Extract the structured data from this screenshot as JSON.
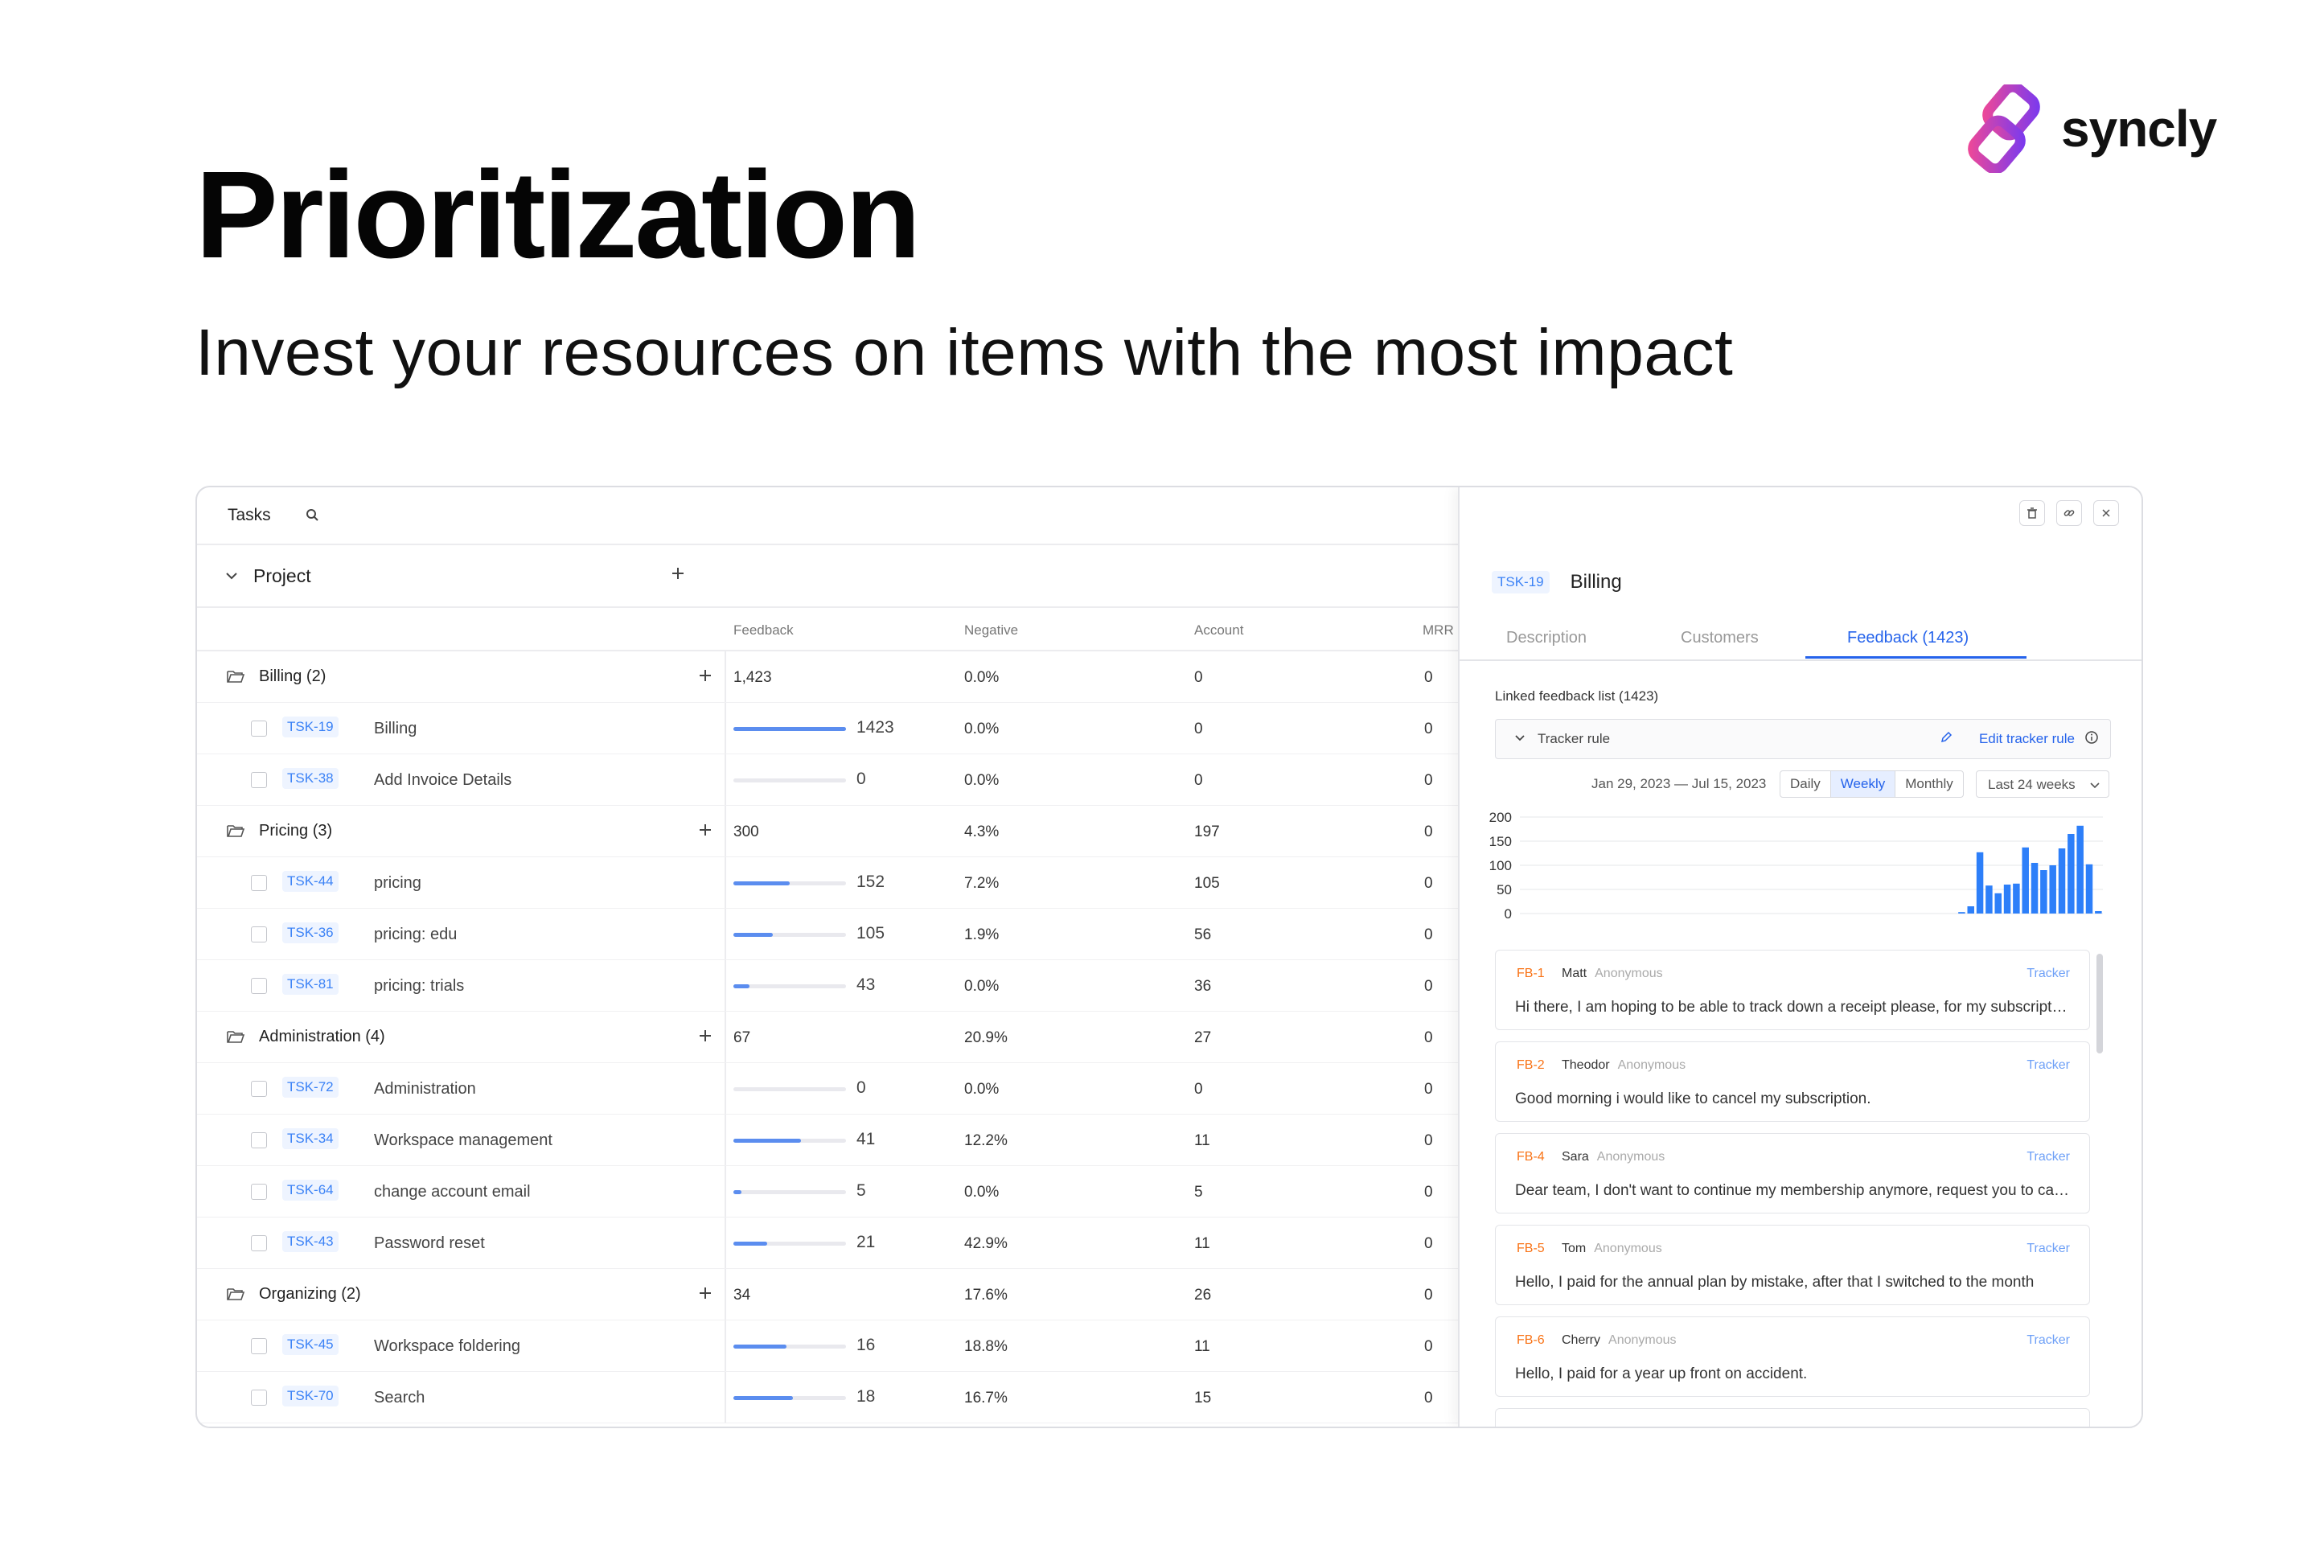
{
  "headline": "Prioritization",
  "subheadline": "Invest your resources on items with the most impact",
  "brand": {
    "name": "syncly",
    "colors": [
      "#7c3aed",
      "#ec4899"
    ]
  },
  "tasks_panel": {
    "title": "Tasks",
    "project_label": "Project",
    "columns": [
      "Feedback",
      "Negative",
      "Account",
      "MRR"
    ],
    "rows": [
      {
        "type": "group",
        "name": "Billing (2)",
        "feedback": "1,423",
        "negative": "0.0%",
        "account": "0",
        "mrr": "0"
      },
      {
        "type": "task",
        "id": "TSK-19",
        "name": "Billing",
        "bar": 1.0,
        "feedback": "1423",
        "negative": "0.0%",
        "account": "0",
        "mrr": "0"
      },
      {
        "type": "task",
        "id": "TSK-38",
        "name": "Add Invoice Details",
        "bar": 0.0,
        "feedback": "0",
        "negative": "0.0%",
        "account": "0",
        "mrr": "0"
      },
      {
        "type": "group",
        "name": "Pricing (3)",
        "feedback": "300",
        "negative": "4.3%",
        "account": "197",
        "mrr": "0"
      },
      {
        "type": "task",
        "id": "TSK-44",
        "name": "pricing",
        "bar": 0.5,
        "feedback": "152",
        "negative": "7.2%",
        "account": "105",
        "mrr": "0"
      },
      {
        "type": "task",
        "id": "TSK-36",
        "name": "pricing: edu",
        "bar": 0.35,
        "feedback": "105",
        "negative": "1.9%",
        "account": "56",
        "mrr": "0"
      },
      {
        "type": "task",
        "id": "TSK-81",
        "name": "pricing: trials",
        "bar": 0.14,
        "feedback": "43",
        "negative": "0.0%",
        "account": "36",
        "mrr": "0"
      },
      {
        "type": "group",
        "name": "Administration (4)",
        "feedback": "67",
        "negative": "20.9%",
        "account": "27",
        "mrr": "0"
      },
      {
        "type": "task",
        "id": "TSK-72",
        "name": "Administration",
        "bar": 0.0,
        "feedback": "0",
        "negative": "0.0%",
        "account": "0",
        "mrr": "0"
      },
      {
        "type": "task",
        "id": "TSK-34",
        "name": "Workspace management",
        "bar": 0.6,
        "feedback": "41",
        "negative": "12.2%",
        "account": "11",
        "mrr": "0"
      },
      {
        "type": "task",
        "id": "TSK-64",
        "name": "change account email",
        "bar": 0.07,
        "feedback": "5",
        "negative": "0.0%",
        "account": "5",
        "mrr": "0"
      },
      {
        "type": "task",
        "id": "TSK-43",
        "name": "Password reset",
        "bar": 0.3,
        "feedback": "21",
        "negative": "42.9%",
        "account": "11",
        "mrr": "0"
      },
      {
        "type": "group",
        "name": "Organizing (2)",
        "feedback": "34",
        "negative": "17.6%",
        "account": "26",
        "mrr": "0"
      },
      {
        "type": "task",
        "id": "TSK-45",
        "name": "Workspace foldering",
        "bar": 0.47,
        "feedback": "16",
        "negative": "18.8%",
        "account": "11",
        "mrr": "0"
      },
      {
        "type": "task",
        "id": "TSK-70",
        "name": "Search",
        "bar": 0.53,
        "feedback": "18",
        "negative": "16.7%",
        "account": "15",
        "mrr": "0"
      }
    ]
  },
  "detail": {
    "task_id": "TSK-19",
    "task_title": "Billing",
    "tabs": [
      "Description",
      "Customers",
      "Feedback (1423)"
    ],
    "active_tab": "Feedback (1423)",
    "list_title": "Linked feedback list (1423)",
    "tracker_rule": "Tracker rule",
    "edit_rule": "Edit tracker rule",
    "date_range": "Jan 29, 2023 — Jul 15, 2023",
    "granularity": [
      "Daily",
      "Weekly",
      "Monthly"
    ],
    "granularity_selected": "Weekly",
    "period": "Last 24 weeks",
    "feedback": [
      {
        "id": "FB-1",
        "user": "Matt",
        "anon": "Anonymous",
        "tag": "Tracker",
        "text": "Hi there, I am hoping to be able to track down a receipt please, for my subscription payment made last month."
      },
      {
        "id": "FB-2",
        "user": "Theodor",
        "anon": "Anonymous",
        "tag": "Tracker",
        "text": "Good morning i would like to cancel my subscription."
      },
      {
        "id": "FB-4",
        "user": "Sara",
        "anon": "Anonymous",
        "tag": "Tracker",
        "text": "Dear team, I don't want to continue my membership anymore, request you to cancel it."
      },
      {
        "id": "FB-5",
        "user": "Tom",
        "anon": "Anonymous",
        "tag": "Tracker",
        "text": "Hello, I paid for the annual plan by mistake, after that I switched to the month"
      },
      {
        "id": "FB-6",
        "user": "Cherry",
        "anon": "Anonymous",
        "tag": "Tracker",
        "text": "Hello, I paid for a year up front on accident."
      }
    ]
  },
  "chart_data": {
    "type": "bar",
    "title": "",
    "xlabel": "",
    "ylabel": "",
    "ylim": [
      0,
      200
    ],
    "yticks": [
      200,
      150,
      100,
      50,
      0
    ],
    "grid": true,
    "color": "#2d7ff9",
    "values": [
      0,
      0,
      0,
      0,
      0,
      0,
      0,
      0,
      0,
      0,
      0,
      0,
      0,
      0,
      0,
      0,
      0,
      0,
      0,
      0,
      0,
      0,
      0,
      0,
      0,
      0,
      0,
      0,
      0,
      0,
      0,
      0,
      0,
      0,
      0,
      0,
      0,
      0,
      0,
      0,
      0,
      0,
      0,
      0,
      0,
      0,
      0,
      0,
      3,
      15,
      127,
      58,
      42,
      60,
      62,
      137,
      105,
      90,
      100,
      135,
      165,
      182,
      102,
      5
    ],
    "categories_count": 64
  }
}
